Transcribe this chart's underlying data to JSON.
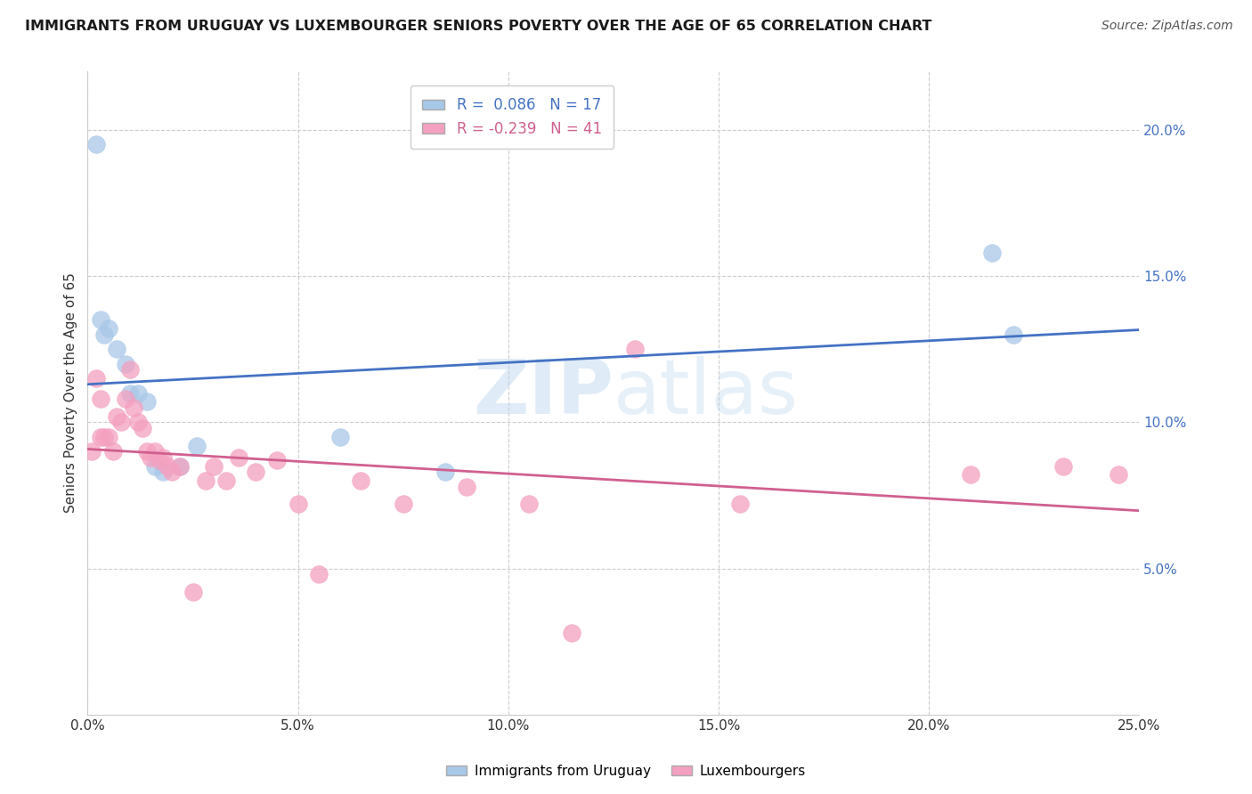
{
  "title": "IMMIGRANTS FROM URUGUAY VS LUXEMBOURGER SENIORS POVERTY OVER THE AGE OF 65 CORRELATION CHART",
  "source": "Source: ZipAtlas.com",
  "ylabel": "Seniors Poverty Over the Age of 65",
  "xlim": [
    0.0,
    0.25
  ],
  "ylim": [
    0.0,
    0.22
  ],
  "xticks": [
    0.0,
    0.05,
    0.1,
    0.15,
    0.2,
    0.25
  ],
  "yticks": [
    0.05,
    0.1,
    0.15,
    0.2
  ],
  "ytick_labels": [
    "5.0%",
    "10.0%",
    "15.0%",
    "20.0%"
  ],
  "xtick_labels": [
    "0.0%",
    "5.0%",
    "10.0%",
    "15.0%",
    "20.0%",
    "25.0%"
  ],
  "blue_R": 0.086,
  "blue_N": 17,
  "pink_R": -0.239,
  "pink_N": 41,
  "blue_color": "#a8c8e8",
  "pink_color": "#f4a0c0",
  "blue_line_color": "#4472c4",
  "pink_line_color": "#d06090",
  "blue_tick_color": "#4472c4",
  "watermark_zip": "ZIP",
  "watermark_atlas": "atlas",
  "legend_label_blue": "Immigrants from Uruguay",
  "legend_label_pink": "Luxembourgers",
  "blue_x": [
    0.002,
    0.003,
    0.004,
    0.005,
    0.007,
    0.009,
    0.01,
    0.012,
    0.014,
    0.016,
    0.018,
    0.022,
    0.026,
    0.06,
    0.215,
    0.22,
    0.085
  ],
  "blue_y": [
    0.195,
    0.135,
    0.13,
    0.132,
    0.125,
    0.12,
    0.11,
    0.11,
    0.107,
    0.085,
    0.083,
    0.085,
    0.092,
    0.095,
    0.158,
    0.13,
    0.083
  ],
  "pink_x": [
    0.001,
    0.002,
    0.003,
    0.003,
    0.004,
    0.005,
    0.006,
    0.007,
    0.008,
    0.009,
    0.01,
    0.011,
    0.012,
    0.013,
    0.014,
    0.015,
    0.016,
    0.017,
    0.018,
    0.019,
    0.02,
    0.022,
    0.025,
    0.028,
    0.03,
    0.033,
    0.036,
    0.04,
    0.045,
    0.05,
    0.055,
    0.065,
    0.075,
    0.09,
    0.105,
    0.115,
    0.13,
    0.155,
    0.21,
    0.232,
    0.245
  ],
  "pink_y": [
    0.09,
    0.115,
    0.095,
    0.108,
    0.095,
    0.095,
    0.09,
    0.102,
    0.1,
    0.108,
    0.118,
    0.105,
    0.1,
    0.098,
    0.09,
    0.088,
    0.09,
    0.087,
    0.088,
    0.085,
    0.083,
    0.085,
    0.042,
    0.08,
    0.085,
    0.08,
    0.088,
    0.083,
    0.087,
    0.072,
    0.048,
    0.08,
    0.072,
    0.078,
    0.072,
    0.028,
    0.125,
    0.072,
    0.082,
    0.085,
    0.082
  ]
}
